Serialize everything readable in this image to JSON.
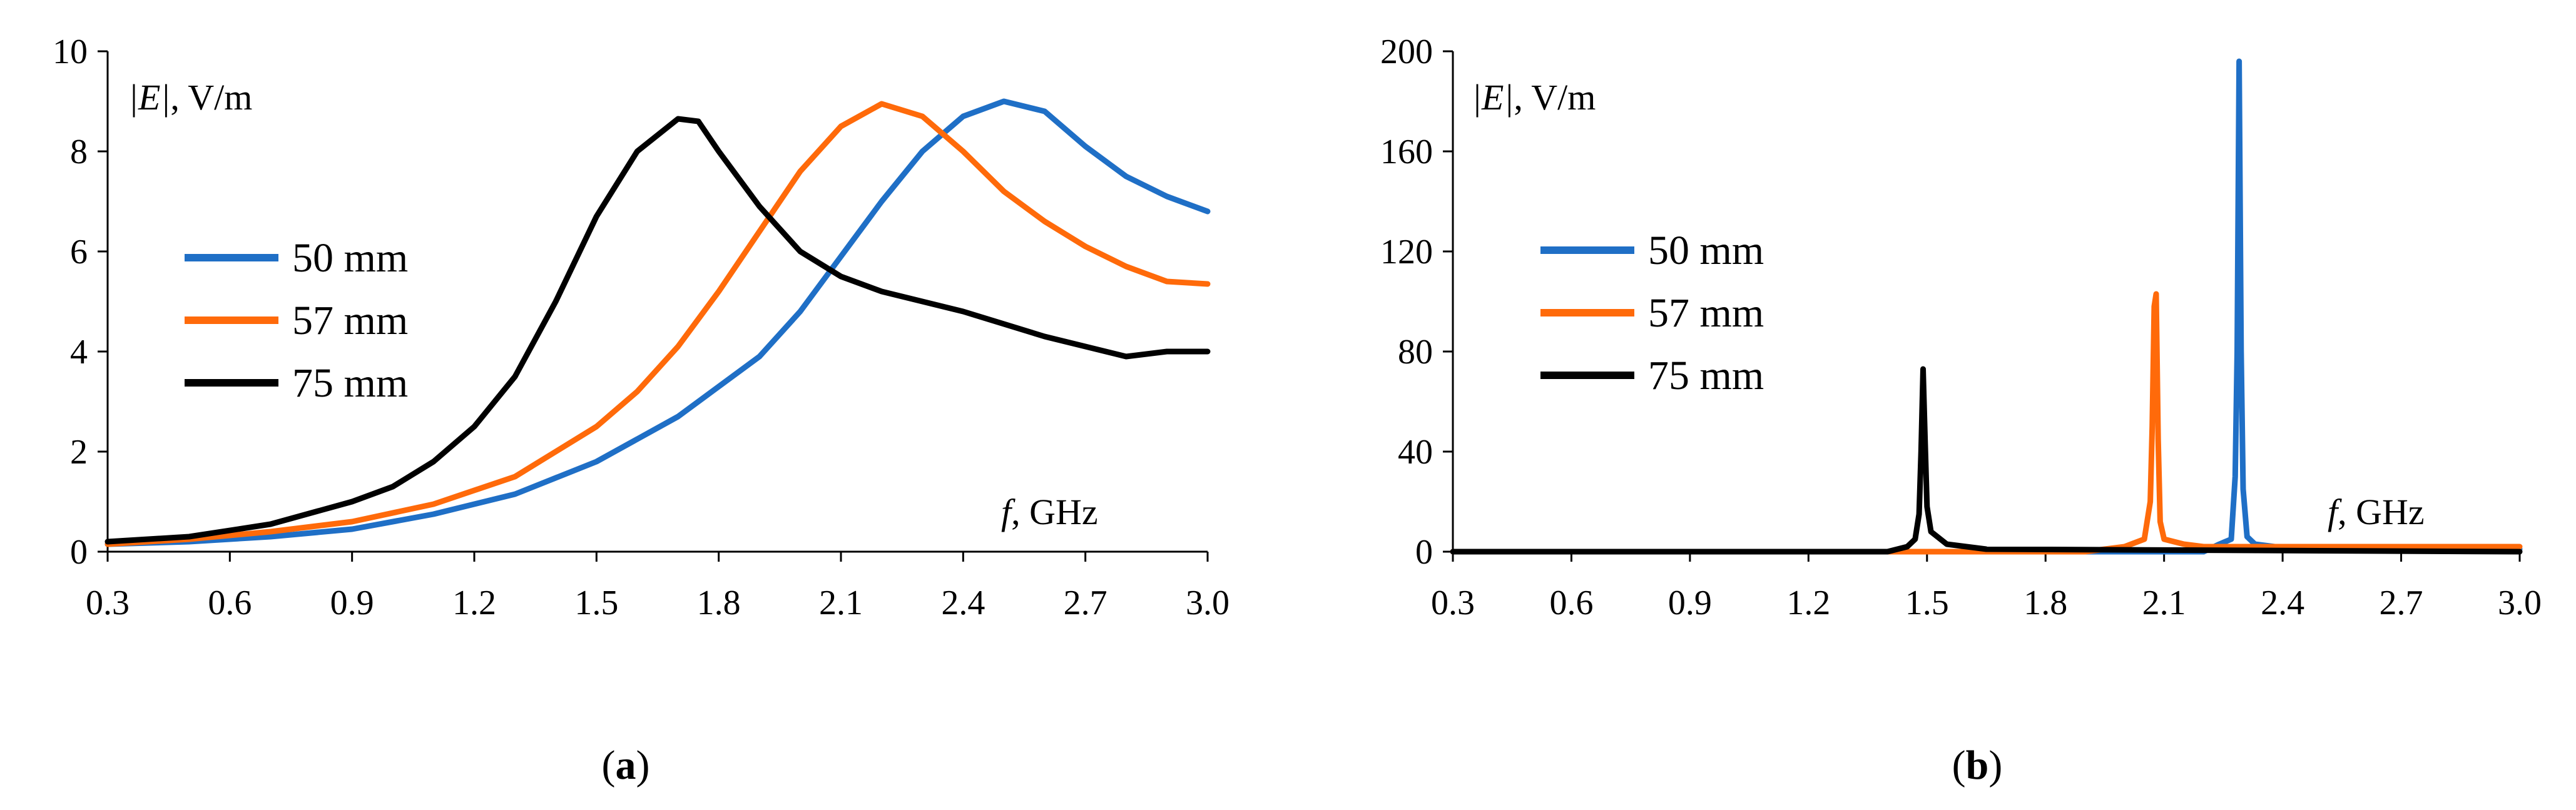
{
  "figure": {
    "panel_a_label": "a",
    "panel_b_label": "b"
  },
  "colors": {
    "50 mm": "#1F6FC6",
    "57 mm": "#FF6A0A",
    "75 mm": "#000000"
  },
  "chart_data": [
    {
      "type": "line",
      "panel": "a",
      "title": "",
      "ylabel_symbol": "|E|",
      "ylabel_unit": ", V/m",
      "xlabel_symbol": "f",
      "xlabel_unit": ", GHz",
      "xlim": [
        0.3,
        3.0
      ],
      "ylim": [
        0,
        10
      ],
      "x_ticks": [
        0.3,
        0.6,
        0.9,
        1.2,
        1.5,
        1.8,
        2.1,
        2.4,
        2.7,
        3.0
      ],
      "x_tick_labels": [
        "0.3",
        "0.6",
        "0.9",
        "1.2",
        "1.5",
        "1.8",
        "2.1",
        "2.4",
        "2.7",
        "3.0"
      ],
      "y_ticks": [
        0,
        2,
        4,
        6,
        8,
        10
      ],
      "y_tick_labels": [
        "0",
        "2",
        "4",
        "6",
        "8",
        "10"
      ],
      "grid": false,
      "legend_position": "left",
      "series": [
        {
          "name": "50 mm",
          "x": [
            0.3,
            0.5,
            0.7,
            0.9,
            1.1,
            1.3,
            1.5,
            1.7,
            1.9,
            2.0,
            2.1,
            2.2,
            2.3,
            2.4,
            2.5,
            2.6,
            2.7,
            2.8,
            2.9,
            3.0
          ],
          "y": [
            0.15,
            0.2,
            0.3,
            0.45,
            0.75,
            1.15,
            1.8,
            2.7,
            3.9,
            4.8,
            5.9,
            7.0,
            8.0,
            8.7,
            9.0,
            8.8,
            8.1,
            7.5,
            7.1,
            6.8
          ]
        },
        {
          "name": "57 mm",
          "x": [
            0.3,
            0.5,
            0.7,
            0.9,
            1.1,
            1.3,
            1.5,
            1.6,
            1.7,
            1.8,
            1.9,
            2.0,
            2.1,
            2.2,
            2.3,
            2.4,
            2.5,
            2.6,
            2.7,
            2.8,
            2.9,
            3.0
          ],
          "y": [
            0.15,
            0.25,
            0.4,
            0.6,
            0.95,
            1.5,
            2.5,
            3.2,
            4.1,
            5.2,
            6.4,
            7.6,
            8.5,
            8.95,
            8.7,
            8.0,
            7.2,
            6.6,
            6.1,
            5.7,
            5.4,
            5.35
          ]
        },
        {
          "name": "75 mm",
          "x": [
            0.3,
            0.5,
            0.7,
            0.9,
            1.0,
            1.1,
            1.2,
            1.3,
            1.4,
            1.5,
            1.6,
            1.7,
            1.75,
            1.8,
            1.9,
            2.0,
            2.1,
            2.2,
            2.4,
            2.6,
            2.8,
            2.9,
            3.0
          ],
          "y": [
            0.2,
            0.3,
            0.55,
            1.0,
            1.3,
            1.8,
            2.5,
            3.5,
            5.0,
            6.7,
            8.0,
            8.65,
            8.6,
            8.0,
            6.9,
            6.0,
            5.5,
            5.2,
            4.8,
            4.3,
            3.9,
            4.0,
            4.0
          ]
        }
      ]
    },
    {
      "type": "line",
      "panel": "b",
      "title": "",
      "ylabel_symbol": "|E|",
      "ylabel_unit": ", V/m",
      "xlabel_symbol": "f",
      "xlabel_unit": ", GHz",
      "xlim": [
        0.3,
        3.0
      ],
      "ylim": [
        0,
        200
      ],
      "x_ticks": [
        0.3,
        0.6,
        0.9,
        1.2,
        1.5,
        1.8,
        2.1,
        2.4,
        2.7,
        3.0
      ],
      "x_tick_labels": [
        "0.3",
        "0.6",
        "0.9",
        "1.2",
        "1.5",
        "1.8",
        "2.1",
        "2.4",
        "2.7",
        "3.0"
      ],
      "y_ticks": [
        0,
        40,
        80,
        120,
        160,
        200
      ],
      "y_tick_labels": [
        "0",
        "40",
        "80",
        "120",
        "160",
        "200"
      ],
      "grid": false,
      "legend_position": "left",
      "series": [
        {
          "name": "50 mm",
          "x": [
            0.3,
            2.2,
            2.24,
            2.27,
            2.28,
            2.285,
            2.29,
            2.295,
            2.3,
            2.31,
            2.33,
            2.38,
            2.42,
            3.0
          ],
          "y": [
            0,
            0,
            3,
            5,
            30,
            80,
            196,
            80,
            25,
            6,
            3,
            2,
            1,
            1
          ]
        },
        {
          "name": "57 mm",
          "x": [
            0.3,
            1.9,
            2.0,
            2.05,
            2.065,
            2.07,
            2.075,
            2.08,
            2.085,
            2.09,
            2.1,
            2.15,
            2.2,
            3.0
          ],
          "y": [
            0,
            0,
            2,
            5,
            20,
            50,
            98,
            103,
            45,
            12,
            5,
            3,
            2,
            2
          ]
        },
        {
          "name": "75 mm",
          "x": [
            0.3,
            1.4,
            1.45,
            1.47,
            1.48,
            1.485,
            1.49,
            1.495,
            1.5,
            1.51,
            1.55,
            1.65,
            3.0
          ],
          "y": [
            0,
            0,
            2,
            5,
            15,
            40,
            73,
            45,
            18,
            8,
            3,
            1,
            0
          ]
        }
      ]
    }
  ]
}
